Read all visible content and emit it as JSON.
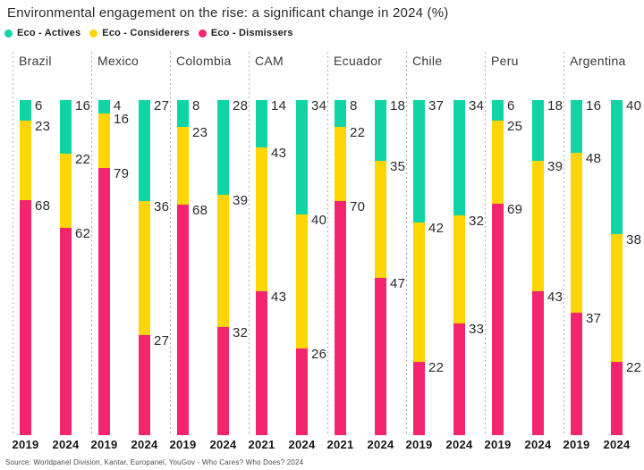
{
  "title": "Environmental engagement on the rise: a significant change in 2024 (%)",
  "legend": [
    {
      "key": "actives",
      "label": "Eco - Actives"
    },
    {
      "key": "considerers",
      "label": "Eco - Considerers"
    },
    {
      "key": "dismissers",
      "label": "Eco - Dismissers"
    }
  ],
  "colors": {
    "actives": "#0fd5a5",
    "considerers": "#ffd502",
    "dismissers": "#f4256e"
  },
  "source": "Source: Worldpanel Division, Kantar, Europanel, YouGov - Who Cares? Who Does? 2024",
  "chart_data": {
    "type": "bar",
    "subtype": "stacked-percentage",
    "stack_order_top_to_bottom": [
      "actives",
      "considerers",
      "dismissers"
    ],
    "legend_position": "top-left",
    "grid": false,
    "groups": [
      {
        "country": "Brazil",
        "bars": [
          {
            "year": "2019",
            "actives": 6,
            "considerers": 23,
            "dismissers": 68
          },
          {
            "year": "2024",
            "actives": 16,
            "considerers": 22,
            "dismissers": 62
          }
        ]
      },
      {
        "country": "Mexico",
        "bars": [
          {
            "year": "2019",
            "actives": 4,
            "considerers": 16,
            "dismissers": 79
          },
          {
            "year": "2024",
            "actives": 27,
            "considerers": 36,
            "dismissers": 27
          }
        ]
      },
      {
        "country": "Colombia",
        "bars": [
          {
            "year": "2019",
            "actives": 8,
            "considerers": 23,
            "dismissers": 68
          },
          {
            "year": "2024",
            "actives": 28,
            "considerers": 39,
            "dismissers": 32
          }
        ]
      },
      {
        "country": "CAM",
        "bars": [
          {
            "year": "2021",
            "actives": 14,
            "considerers": 43,
            "dismissers": 43
          },
          {
            "year": "2024",
            "actives": 34,
            "considerers": 40,
            "dismissers": 26
          }
        ]
      },
      {
        "country": "Ecuador",
        "bars": [
          {
            "year": "2021",
            "actives": 8,
            "considerers": 22,
            "dismissers": 70
          },
          {
            "year": "2024",
            "actives": 18,
            "considerers": 35,
            "dismissers": 47
          }
        ]
      },
      {
        "country": "Chile",
        "bars": [
          {
            "year": "2019",
            "actives": 37,
            "considerers": 42,
            "dismissers": 22
          },
          {
            "year": "2024",
            "actives": 34,
            "considerers": 32,
            "dismissers": 33
          }
        ]
      },
      {
        "country": "Peru",
        "bars": [
          {
            "year": "2019",
            "actives": 6,
            "considerers": 25,
            "dismissers": 69
          },
          {
            "year": "2024",
            "actives": 18,
            "considerers": 39,
            "dismissers": 43
          }
        ]
      },
      {
        "country": "Argentina",
        "bars": [
          {
            "year": "2019",
            "actives": 16,
            "considerers": 48,
            "dismissers": 37
          },
          {
            "year": "2024",
            "actives": 40,
            "considerers": 38,
            "dismissers": 22
          }
        ]
      }
    ]
  }
}
